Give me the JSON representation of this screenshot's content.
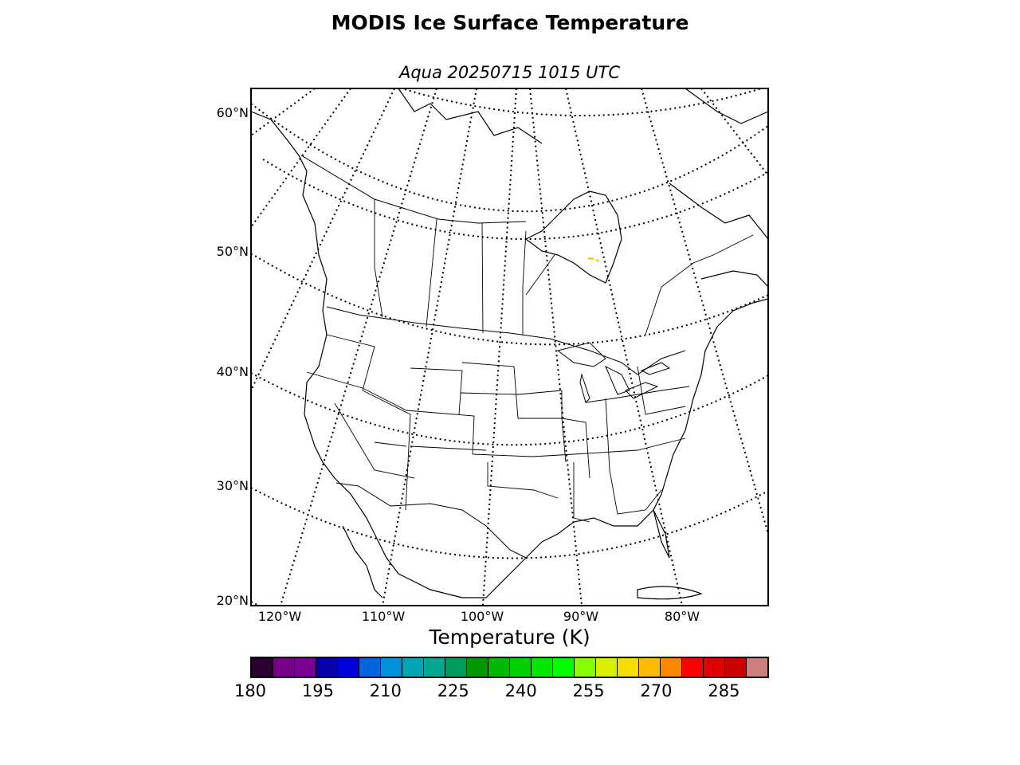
{
  "title": "MODIS Ice Surface Temperature",
  "subtitle": "Aqua 20250715 1015 UTC",
  "map": {
    "projection": "lambert-conformal",
    "lat_labels": [
      "60°N",
      "50°N",
      "40°N",
      "30°N",
      "20°N"
    ],
    "lon_labels": [
      "120°W",
      "110°W",
      "100°W",
      "90°W",
      "80°W"
    ],
    "features": [
      "coastlines",
      "country-borders",
      "state-borders",
      "graticule-dotted"
    ],
    "highlight": {
      "description": "small ice patches near Hudson Bay shore",
      "color": "#ffbb00"
    }
  },
  "colorbar": {
    "label": "Temperature (K)",
    "min": 180,
    "max": 295,
    "step": 5,
    "tick_labels": [
      "180",
      "195",
      "210",
      "225",
      "240",
      "255",
      "270",
      "285"
    ],
    "colors": [
      "#2a002f",
      "#780088",
      "#7a0095",
      "#0800a8",
      "#0000dd",
      "#0066dd",
      "#0091dd",
      "#00a5b5",
      "#00a891",
      "#009c5e",
      "#009800",
      "#00b900",
      "#00d000",
      "#00e800",
      "#00ff00",
      "#88ff00",
      "#d8ef00",
      "#f5dd00",
      "#ffbb00",
      "#ff8800",
      "#ff0000",
      "#e00000",
      "#cc0000",
      "#cc7f7f"
    ]
  }
}
